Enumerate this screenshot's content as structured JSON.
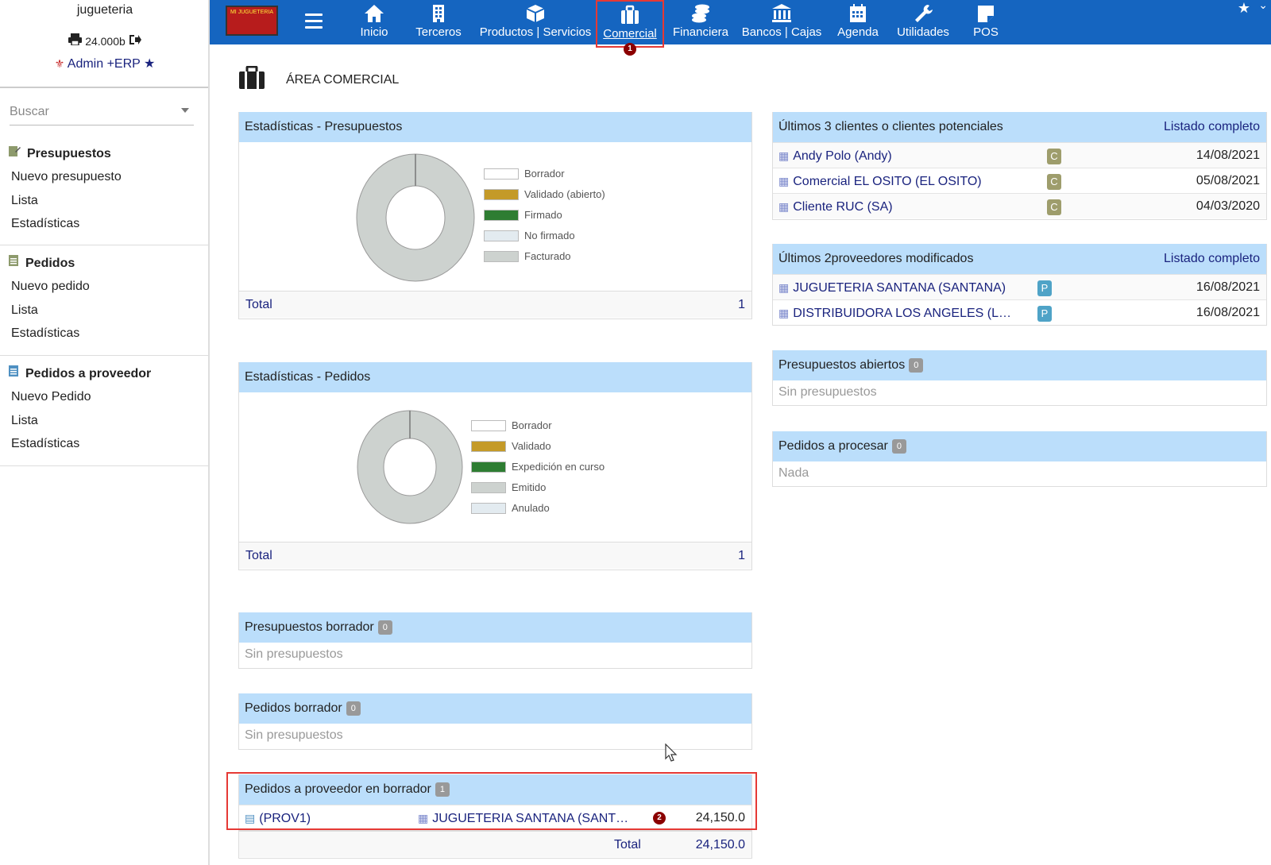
{
  "sidebar": {
    "company": "jugueteria",
    "printer_amount": "24.000b",
    "user_name": "Admin +ERP",
    "search_placeholder": "Buscar",
    "sections": [
      {
        "title": "Presupuestos",
        "items": [
          "Nuevo presupuesto",
          "Lista",
          "Estadísticas"
        ]
      },
      {
        "title": "Pedidos",
        "items": [
          "Nuevo pedido",
          "Lista",
          "Estadísticas"
        ]
      },
      {
        "title": "Pedidos a proveedor",
        "items": [
          "Nuevo Pedido",
          "Lista",
          "Estadísticas"
        ]
      }
    ]
  },
  "topbar": {
    "logo_text": "MI JUGUETERIA",
    "nav": [
      {
        "label": "Inicio",
        "icon": "home-icon"
      },
      {
        "label": "Terceros",
        "icon": "building-icon"
      },
      {
        "label": "Productos | Servicios",
        "icon": "cube-icon"
      },
      {
        "label": "Comercial",
        "icon": "briefcase-icon",
        "active": true,
        "badge": "1"
      },
      {
        "label": "Financiera",
        "icon": "coins-icon"
      },
      {
        "label": "Bancos | Cajas",
        "icon": "bank-icon"
      },
      {
        "label": "Agenda",
        "icon": "calendar-icon"
      },
      {
        "label": "Utilidades",
        "icon": "wrench-icon"
      },
      {
        "label": "POS",
        "icon": "sticky-note-icon"
      }
    ]
  },
  "page_title": "ÁREA COMERCIAL",
  "stats_presupuestos": {
    "title": "Estadísticas - Presupuestos",
    "legend": [
      {
        "label": "Borrador",
        "color": "#ffffff"
      },
      {
        "label": "Validado (abierto)",
        "color": "#c49a28"
      },
      {
        "label": "Firmado",
        "color": "#2e7d32"
      },
      {
        "label": "No firmado",
        "color": "#e3ebf0"
      },
      {
        "label": "Facturado",
        "color": "#cdd2cf"
      }
    ],
    "total_label": "Total",
    "total_value": "1"
  },
  "stats_pedidos": {
    "title": "Estadísticas - Pedidos",
    "legend": [
      {
        "label": "Borrador",
        "color": "#ffffff"
      },
      {
        "label": "Validado",
        "color": "#c49a28"
      },
      {
        "label": "Expedición en curso",
        "color": "#2e7d32"
      },
      {
        "label": "Emitido",
        "color": "#cdd2cf"
      },
      {
        "label": "Anulado",
        "color": "#e3ebf0"
      }
    ],
    "total_label": "Total",
    "total_value": "1"
  },
  "presupuestos_borrador": {
    "title": "Presupuestos borrador",
    "count": "0",
    "empty": "Sin presupuestos"
  },
  "pedidos_borrador": {
    "title": "Pedidos borrador",
    "count": "0",
    "empty": "Sin presupuestos"
  },
  "pedidos_proveedor_borrador": {
    "title": "Pedidos a proveedor en borrador",
    "count": "1",
    "row": {
      "ref": "(PROV1)",
      "supplier": "JUGUETERIA SANTANA (SANT…",
      "badge": "2",
      "amount": "24,150.0"
    },
    "total_label": "Total",
    "total_value": "24,150.0"
  },
  "ultimos_clientes": {
    "title": "Últimos 3 clientes o clientes potenciales",
    "link": "Listado completo",
    "rows": [
      {
        "name": "Andy Polo (Andy)",
        "tag": "C",
        "date": "14/08/2021"
      },
      {
        "name": "Comercial EL OSITO (EL OSITO)",
        "tag": "C",
        "date": "05/08/2021"
      },
      {
        "name": "Cliente RUC (SA)",
        "tag": "C",
        "date": "04/03/2020"
      }
    ]
  },
  "ultimos_proveedores": {
    "title": "Últimos 2proveedores modificados",
    "link": "Listado completo",
    "rows": [
      {
        "name": "JUGUETERIA SANTANA (SANTANA)",
        "tag": "P",
        "date": "16/08/2021"
      },
      {
        "name": "DISTRIBUIDORA LOS ANGELES (L…",
        "tag": "P",
        "date": "16/08/2021"
      }
    ]
  },
  "presupuestos_abiertos": {
    "title": "Presupuestos abiertos",
    "count": "0",
    "empty": "Sin presupuestos"
  },
  "pedidos_procesar": {
    "title": "Pedidos a procesar",
    "count": "0",
    "empty": "Nada"
  },
  "colors": {
    "topbar": "#1565c0",
    "panel_header": "#bbdefb",
    "tag_client": "#9e9d6c",
    "tag_supplier": "#4fa3c7",
    "link": "#1a237e"
  }
}
